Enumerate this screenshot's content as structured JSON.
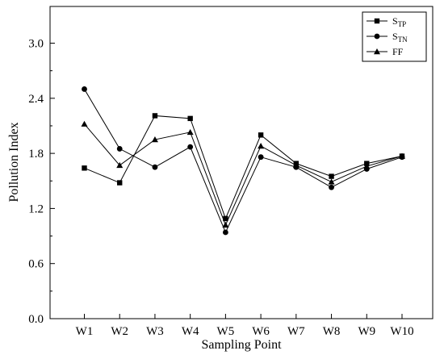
{
  "chart_data": {
    "type": "line",
    "title": "",
    "xlabel": "Sampling Point",
    "ylabel": "Pollution Index",
    "categories": [
      "W1",
      "W2",
      "W3",
      "W4",
      "W5",
      "W6",
      "W7",
      "W8",
      "W9",
      "W10"
    ],
    "ylim": [
      0,
      3.4
    ],
    "yticks": [
      "0.0",
      "0.6",
      "1.2",
      "1.8",
      "2.4",
      "3.0"
    ],
    "grid": false,
    "legend_position": "top-right",
    "series": [
      {
        "name": "STP",
        "name_main": "S",
        "name_sub": "TP",
        "marker": "square",
        "values": [
          1.64,
          1.48,
          2.21,
          2.18,
          1.09,
          2.0,
          1.69,
          1.55,
          1.69,
          1.77
        ]
      },
      {
        "name": "STN",
        "name_main": "S",
        "name_sub": "TN",
        "marker": "circle",
        "values": [
          2.5,
          1.85,
          1.65,
          1.87,
          0.94,
          1.76,
          1.65,
          1.43,
          1.63,
          1.76
        ]
      },
      {
        "name": "FF",
        "name_main": "FF",
        "name_sub": "",
        "marker": "triangle",
        "values": [
          2.12,
          1.67,
          1.95,
          2.03,
          1.02,
          1.88,
          1.67,
          1.49,
          1.66,
          1.77
        ]
      }
    ]
  }
}
